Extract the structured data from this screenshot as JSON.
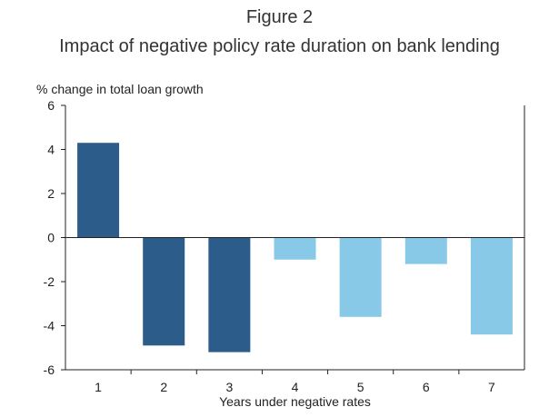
{
  "chart_data": {
    "type": "bar",
    "title": "Figure 2",
    "subtitle": "Impact of negative policy rate duration on bank lending",
    "ylabel": "% change in total loan growth",
    "xlabel": "Years under negative rates",
    "categories": [
      "1",
      "2",
      "3",
      "4",
      "5",
      "6",
      "7"
    ],
    "values": [
      4.3,
      -4.9,
      -5.2,
      -1.0,
      -3.6,
      -1.2,
      -4.4
    ],
    "colors": [
      "#2b5c8a",
      "#2b5c8a",
      "#2b5c8a",
      "#87c9e6",
      "#87c9e6",
      "#87c9e6",
      "#87c9e6"
    ],
    "ylim": [
      -6,
      6
    ],
    "yticks": [
      "6",
      "4",
      "2",
      "0",
      "-2",
      "-4",
      "-6"
    ],
    "ytick_values": [
      6,
      4,
      2,
      0,
      -2,
      -4,
      -6
    ],
    "grid": false
  }
}
